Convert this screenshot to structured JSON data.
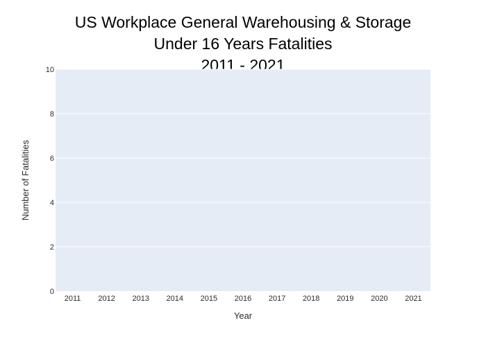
{
  "chart_data": {
    "type": "bar",
    "title_lines": [
      "US Workplace General Warehousing & Storage",
      "Under 16 Years Fatalities",
      "2011 - 2021"
    ],
    "xlabel": "Year",
    "ylabel": "Number of Fatalities",
    "categories": [
      "2011",
      "2012",
      "2013",
      "2014",
      "2015",
      "2016",
      "2017",
      "2018",
      "2019",
      "2020",
      "2021"
    ],
    "values": [
      0,
      0,
      0,
      0,
      0,
      0,
      0,
      0,
      0,
      0,
      0
    ],
    "ylim": [
      0,
      10
    ],
    "yticks": [
      0,
      2,
      4,
      6,
      8,
      10
    ],
    "grid": true,
    "legend": "none",
    "colors": {
      "plot_background": "#e5ecf6",
      "gridline": "#ffffff",
      "bar": "#636efa"
    }
  }
}
